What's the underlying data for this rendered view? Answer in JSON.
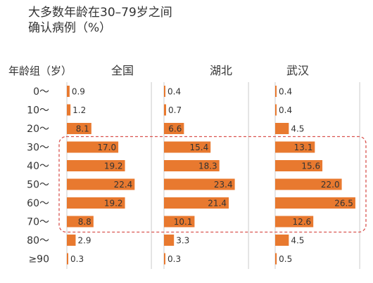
{
  "chart_data": {
    "type": "bar",
    "orientation": "horizontal",
    "title": "大多数年龄在30–79岁之间",
    "subtitle": "确认病例（%）",
    "ylabel": "年龄组（岁）",
    "categories": [
      "0～",
      "10～",
      "20～",
      "30～",
      "40～",
      "50～",
      "60～",
      "70～",
      "80～",
      "≥90"
    ],
    "series": [
      {
        "name": "全国",
        "values": [
          0.9,
          1.2,
          8.1,
          17.0,
          19.2,
          22.4,
          19.2,
          8.8,
          2.9,
          0.3
        ]
      },
      {
        "name": "湖北",
        "values": [
          0.4,
          0.7,
          6.6,
          15.4,
          18.3,
          23.4,
          21.4,
          10.1,
          3.3,
          0.3
        ]
      },
      {
        "name": "武汉",
        "values": [
          0.4,
          0.4,
          4.5,
          13.1,
          15.6,
          22.0,
          26.5,
          12.6,
          4.5,
          0.5
        ]
      }
    ],
    "xlim": [
      0,
      27
    ],
    "highlight_range": [
      "30～",
      "70～"
    ],
    "colors": {
      "bar": "#e8792f",
      "highlight_box": "#d9534f",
      "panel_border": "#cccccc"
    },
    "grid": false,
    "legend": "none"
  }
}
